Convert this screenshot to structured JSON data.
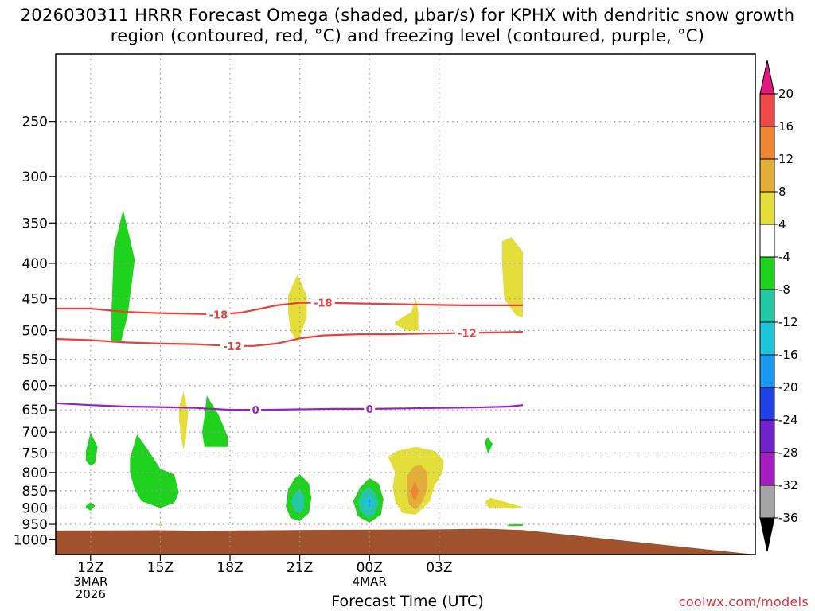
{
  "title": "2026030311 HRRR Forecast Omega (shaded, μbar/s) for KPHX with dendritic snow growth region (contoured, red, °C) and freezing level (contoured, purple, °C)",
  "credit": "coolwx.com/models",
  "chart_data": {
    "type": "time-height cross section",
    "title": "2026030311 HRRR Forecast Omega (shaded, μbar/s) for KPHX with dendritic snow growth region (contoured, red, °C) and freezing level (contoured, purple, °C)",
    "xlabel": "Forecast Time (UTC)",
    "ylabel": "",
    "xlim_hours": [
      10.5,
      40.6
    ],
    "ylim_hpa": [
      200,
      1050
    ],
    "y_ticks": [
      250,
      300,
      350,
      400,
      450,
      500,
      550,
      600,
      650,
      700,
      750,
      800,
      850,
      900,
      950,
      1000
    ],
    "x_ticks": [
      {
        "hour": 12,
        "label": "12Z",
        "sub": [
          "3MAR",
          "2026"
        ]
      },
      {
        "hour": 15,
        "label": "15Z",
        "sub": []
      },
      {
        "hour": 18,
        "label": "18Z",
        "sub": []
      },
      {
        "hour": 21,
        "label": "21Z",
        "sub": []
      },
      {
        "hour": 24,
        "label": "00Z",
        "sub": [
          "4MAR"
        ]
      },
      {
        "hour": 27,
        "label": "03Z",
        "sub": []
      }
    ],
    "colorbar": {
      "labels": [
        "20",
        "16",
        "12",
        "8",
        "4",
        "-4",
        "-8",
        "-12",
        "-16",
        "-20",
        "-24",
        "-28",
        "-32",
        "-36"
      ],
      "bins": [
        {
          "from": 16,
          "to": 20,
          "color": "#ee4848"
        },
        {
          "from": 12,
          "to": 16,
          "color": "#ef8631"
        },
        {
          "from": 8,
          "to": 12,
          "color": "#e3ad39"
        },
        {
          "from": 4,
          "to": 8,
          "color": "#e4de3a"
        },
        {
          "from": -4,
          "to": 4,
          "color": "#ffffff"
        },
        {
          "from": -8,
          "to": -4,
          "color": "#1ed21e"
        },
        {
          "from": -12,
          "to": -8,
          "color": "#22c7a3"
        },
        {
          "from": -16,
          "to": -12,
          "color": "#1cc6d8"
        },
        {
          "from": -20,
          "to": -16,
          "color": "#1a97ee"
        },
        {
          "from": -24,
          "to": -20,
          "color": "#2040e8"
        },
        {
          "from": -28,
          "to": -24,
          "color": "#7222cc"
        },
        {
          "from": -32,
          "to": -28,
          "color": "#a51bc4"
        },
        {
          "from": -36,
          "to": -32,
          "color": "#a5a5a5"
        }
      ],
      "top_arrow_color": "#e01a80",
      "bottom_arrow_color": "#000000"
    },
    "contours": [
      {
        "name": "dgz-top",
        "value": -18,
        "label": "-18",
        "color": "#e8403a",
        "points": [
          [
            10.5,
            465
          ],
          [
            12,
            465
          ],
          [
            13.5,
            470
          ],
          [
            15,
            472
          ],
          [
            16.5,
            473
          ],
          [
            17.5,
            474
          ],
          [
            18.5,
            471
          ],
          [
            20,
            460
          ],
          [
            21,
            456
          ],
          [
            22,
            456
          ],
          [
            23.5,
            457
          ],
          [
            25,
            458
          ],
          [
            26.5,
            459
          ],
          [
            28,
            460
          ],
          [
            29.5,
            460
          ],
          [
            30.6,
            460
          ]
        ],
        "label_hours": [
          17.5,
          22
        ]
      },
      {
        "name": "dgz-bottom",
        "value": -12,
        "label": "-12",
        "color": "#e8403a",
        "points": [
          [
            10.5,
            514
          ],
          [
            12,
            516
          ],
          [
            13.5,
            520
          ],
          [
            15,
            522
          ],
          [
            16.5,
            523
          ],
          [
            18,
            526
          ],
          [
            19,
            526
          ],
          [
            20,
            522
          ],
          [
            21,
            513
          ],
          [
            22,
            508
          ],
          [
            23.5,
            506
          ],
          [
            25,
            506
          ],
          [
            26.5,
            505
          ],
          [
            28,
            504
          ],
          [
            29.5,
            503
          ],
          [
            30.6,
            502
          ]
        ],
        "label_hours": [
          18.1,
          28.2
        ]
      },
      {
        "name": "freezing-level",
        "value": 0,
        "label": "0",
        "color": "#9a1fc4",
        "points": [
          [
            10.5,
            636
          ],
          [
            12,
            640
          ],
          [
            13.5,
            643
          ],
          [
            15,
            644
          ],
          [
            16.5,
            646
          ],
          [
            18,
            650
          ],
          [
            19.5,
            650
          ],
          [
            21,
            649
          ],
          [
            22.5,
            648
          ],
          [
            24,
            648
          ],
          [
            25.5,
            647
          ],
          [
            27,
            646
          ],
          [
            28.5,
            645
          ],
          [
            30,
            643
          ],
          [
            30.6,
            640
          ]
        ],
        "label_hours": [
          19.1,
          24.0
        ]
      }
    ],
    "omega_regions": [
      {
        "name": "yellow-top-right",
        "color": "#e4de3a",
        "points": [
          [
            29.7,
            372
          ],
          [
            30.1,
            367
          ],
          [
            30.6,
            385
          ],
          [
            30.6,
            478
          ],
          [
            30.3,
            475
          ],
          [
            29.8,
            450
          ],
          [
            29.7,
            400
          ]
        ]
      },
      {
        "name": "green-350-hpa",
        "color": "#1ed21e",
        "points": [
          [
            12.9,
            520
          ],
          [
            12.9,
            470
          ],
          [
            13.0,
            380
          ],
          [
            13.4,
            335
          ],
          [
            13.9,
            395
          ],
          [
            13.6,
            475
          ],
          [
            13.3,
            520
          ]
        ]
      },
      {
        "name": "yellow-21z",
        "color": "#e4de3a",
        "points": [
          [
            20.5,
            445
          ],
          [
            20.9,
            415
          ],
          [
            21.3,
            445
          ],
          [
            21.3,
            478
          ],
          [
            21.1,
            500
          ],
          [
            20.9,
            520
          ],
          [
            20.6,
            500
          ],
          [
            20.5,
            470
          ]
        ]
      },
      {
        "name": "yellow-01z",
        "color": "#e4de3a",
        "points": [
          [
            25.1,
            486
          ],
          [
            25.8,
            470
          ],
          [
            26.0,
            450
          ],
          [
            26.1,
            470
          ],
          [
            26.1,
            500
          ],
          [
            25.6,
            500
          ],
          [
            25.1,
            490
          ]
        ]
      },
      {
        "name": "yellow-16z",
        "color": "#e4de3a",
        "points": [
          [
            15.8,
            645
          ],
          [
            16.0,
            612
          ],
          [
            16.2,
            655
          ],
          [
            16.1,
            715
          ],
          [
            16.0,
            742
          ],
          [
            15.9,
            715
          ],
          [
            15.8,
            670
          ]
        ]
      },
      {
        "name": "green-17z",
        "color": "#1ed21e",
        "points": [
          [
            16.9,
            665
          ],
          [
            17.0,
            620
          ],
          [
            17.5,
            660
          ],
          [
            17.9,
            710
          ],
          [
            17.9,
            735
          ],
          [
            16.9,
            735
          ],
          [
            16.8,
            700
          ]
        ]
      },
      {
        "name": "green-12z-mid",
        "color": "#1ed21e",
        "points": [
          [
            11.8,
            745
          ],
          [
            12.0,
            700
          ],
          [
            12.3,
            735
          ],
          [
            12.2,
            775
          ],
          [
            12.0,
            783
          ],
          [
            11.8,
            770
          ]
        ]
      },
      {
        "name": "green-12z-low",
        "color": "#1ed21e",
        "points": [
          [
            11.8,
            893
          ],
          [
            12.0,
            883
          ],
          [
            12.2,
            893
          ],
          [
            12.0,
            908
          ],
          [
            11.8,
            900
          ]
        ]
      },
      {
        "name": "green-14z",
        "color": "#1ed21e",
        "points": [
          [
            13.7,
            763
          ],
          [
            14.0,
            705
          ],
          [
            14.5,
            745
          ],
          [
            15.0,
            790
          ],
          [
            15.6,
            805
          ],
          [
            15.8,
            855
          ],
          [
            15.6,
            885
          ],
          [
            15.0,
            900
          ],
          [
            14.2,
            880
          ],
          [
            13.9,
            848
          ],
          [
            13.7,
            800
          ]
        ]
      },
      {
        "name": "yellow-15z-speck",
        "color": "#e4de3a",
        "points": [
          [
            14.9,
            952
          ],
          [
            15.0,
            948
          ],
          [
            15.1,
            952
          ],
          [
            15.0,
            956
          ]
        ]
      },
      {
        "name": "green-21z-low",
        "color": "#1ed21e",
        "points": [
          [
            20.4,
            895
          ],
          [
            20.5,
            845
          ],
          [
            20.8,
            815
          ],
          [
            21.0,
            805
          ],
          [
            21.4,
            830
          ],
          [
            21.5,
            870
          ],
          [
            21.4,
            915
          ],
          [
            21.0,
            940
          ],
          [
            20.6,
            930
          ]
        ]
      },
      {
        "name": "teal-21z-low",
        "color": "#22c7a3",
        "points": [
          [
            20.6,
            880
          ],
          [
            20.8,
            855
          ],
          [
            21.0,
            845
          ],
          [
            21.2,
            870
          ],
          [
            21.2,
            900
          ],
          [
            21.0,
            915
          ],
          [
            20.8,
            910
          ]
        ]
      },
      {
        "name": "green-00z-low",
        "color": "#1ed21e",
        "points": [
          [
            23.3,
            880
          ],
          [
            23.6,
            840
          ],
          [
            24.0,
            815
          ],
          [
            24.4,
            830
          ],
          [
            24.6,
            875
          ],
          [
            24.5,
            920
          ],
          [
            24.0,
            945
          ],
          [
            23.5,
            925
          ]
        ]
      },
      {
        "name": "teal-00z-low",
        "color": "#22c7a3",
        "points": [
          [
            23.5,
            880
          ],
          [
            23.7,
            850
          ],
          [
            24.0,
            840
          ],
          [
            24.3,
            860
          ],
          [
            24.4,
            890
          ],
          [
            24.2,
            920
          ],
          [
            23.9,
            928
          ],
          [
            23.6,
            910
          ]
        ]
      },
      {
        "name": "cyan-00z-low",
        "color": "#1cc6d8",
        "points": [
          [
            23.7,
            880
          ],
          [
            23.9,
            865
          ],
          [
            24.1,
            870
          ],
          [
            24.2,
            890
          ],
          [
            24.0,
            910
          ],
          [
            23.8,
            905
          ]
        ]
      },
      {
        "name": "blue-00z-core",
        "color": "#1a97ee",
        "points": [
          [
            23.95,
            880
          ],
          [
            24.0,
            868
          ],
          [
            24.05,
            880
          ],
          [
            24.0,
            898
          ]
        ]
      },
      {
        "name": "yellow-02z-low",
        "color": "#e4de3a",
        "points": [
          [
            24.8,
            760
          ],
          [
            25.2,
            745
          ],
          [
            26.0,
            735
          ],
          [
            26.8,
            745
          ],
          [
            27.2,
            770
          ],
          [
            27.1,
            805
          ],
          [
            26.8,
            835
          ],
          [
            26.6,
            880
          ],
          [
            26.0,
            920
          ],
          [
            25.4,
            915
          ],
          [
            25.1,
            880
          ],
          [
            25.0,
            840
          ],
          [
            25.1,
            800
          ]
        ]
      },
      {
        "name": "amber-02z-low",
        "color": "#e3ad39",
        "points": [
          [
            25.6,
            810
          ],
          [
            25.9,
            785
          ],
          [
            26.2,
            780
          ],
          [
            26.5,
            800
          ],
          [
            26.5,
            840
          ],
          [
            26.3,
            880
          ],
          [
            26.0,
            905
          ],
          [
            25.7,
            890
          ],
          [
            25.6,
            850
          ]
        ]
      },
      {
        "name": "orange-02z-core",
        "color": "#ef8631",
        "points": [
          [
            25.8,
            850
          ],
          [
            25.95,
            822
          ],
          [
            26.1,
            850
          ],
          [
            26.0,
            878
          ],
          [
            25.85,
            870
          ]
        ]
      },
      {
        "name": "green-04z-speck",
        "color": "#1ed21e",
        "points": [
          [
            28.95,
            722
          ],
          [
            29.1,
            712
          ],
          [
            29.3,
            728
          ],
          [
            29.1,
            752
          ]
        ]
      },
      {
        "name": "yellow-04z-low",
        "color": "#e4de3a",
        "points": [
          [
            29.0,
            880
          ],
          [
            29.2,
            870
          ],
          [
            30.0,
            885
          ],
          [
            30.6,
            898
          ],
          [
            30.3,
            902
          ],
          [
            29.2,
            900
          ],
          [
            29.0,
            890
          ]
        ]
      },
      {
        "name": "green-04z-sliver",
        "color": "#1ed21e",
        "points": [
          [
            29.9,
            952
          ],
          [
            30.3,
            949
          ],
          [
            30.6,
            950
          ],
          [
            30.6,
            955
          ],
          [
            30.0,
            956
          ]
        ]
      }
    ],
    "terrain": {
      "color": "#a0522d",
      "top_points": [
        [
          10.5,
          970
        ],
        [
          15,
          969
        ],
        [
          17,
          971
        ],
        [
          18,
          970
        ],
        [
          21,
          968
        ],
        [
          24,
          967
        ],
        [
          27,
          966
        ],
        [
          29,
          964
        ],
        [
          30.6,
          968
        ]
      ],
      "bottom_hpa": 1050
    }
  },
  "colors": {
    "grid": "#999999",
    "frame": "#000000",
    "credit": "#e0303a"
  }
}
